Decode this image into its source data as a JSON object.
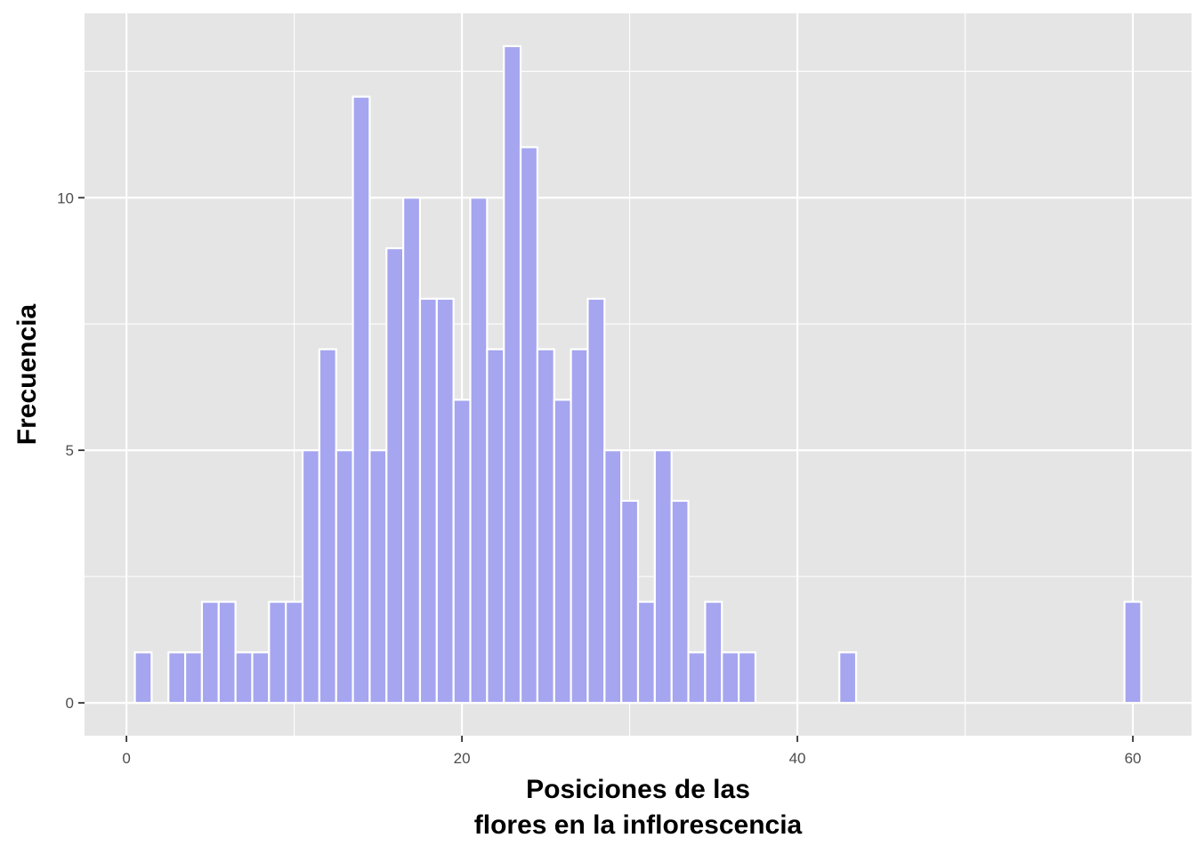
{
  "chart_data": {
    "type": "bar",
    "title": "",
    "xlabel": [
      "Posiciones de las",
      "flores en la inflorescencia"
    ],
    "ylabel": "Frecuencia",
    "xlim": [
      -2.5,
      63.5
    ],
    "ylim": [
      -0.65,
      13.65
    ],
    "x_ticks": [
      0,
      20,
      40,
      60
    ],
    "x_tick_labels": [
      "0",
      "20",
      "40",
      "60"
    ],
    "y_ticks": [
      0,
      5,
      10
    ],
    "y_tick_labels": [
      "0",
      "5",
      "10"
    ],
    "bin_width": 1,
    "x": [
      1,
      3,
      4,
      5,
      6,
      7,
      8,
      9,
      10,
      11,
      12,
      13,
      14,
      15,
      16,
      17,
      18,
      19,
      20,
      21,
      22,
      23,
      24,
      25,
      26,
      27,
      28,
      29,
      30,
      31,
      32,
      33,
      34,
      35,
      36,
      37,
      43,
      60
    ],
    "values": [
      1,
      1,
      1,
      2,
      2,
      1,
      1,
      2,
      2,
      5,
      7,
      5,
      12,
      5,
      9,
      10,
      8,
      8,
      6,
      10,
      7,
      13,
      11,
      7,
      6,
      7,
      8,
      5,
      4,
      2,
      5,
      4,
      1,
      2,
      1,
      1,
      1,
      2
    ],
    "bar_color": "#a5a5f0",
    "bar_outline": "#ffffff",
    "panel_background": "#e5e5e5",
    "grid": true,
    "legend": "none"
  }
}
